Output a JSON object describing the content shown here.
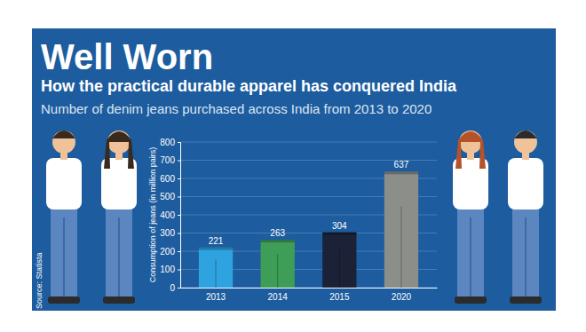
{
  "chart_data": {
    "type": "bar",
    "title": "Well Worn",
    "subtitle": "How the practical durable apparel has conquered India",
    "description": "Number of denim jeans purchased across India from 2013 to 2020",
    "source": "Source: Statista",
    "y_label": "Consumption of jeans (in million pairs)",
    "categories": [
      "2013",
      "2014",
      "2015",
      "2020"
    ],
    "values": [
      221,
      263,
      304,
      637
    ],
    "colors": [
      "#2ea3df",
      "#3e9e57",
      "#1b2238",
      "#8c8f89"
    ],
    "ylim": [
      0,
      800
    ],
    "yticks": [
      0,
      100,
      200,
      300,
      400,
      500,
      600,
      700,
      800
    ],
    "grid": true,
    "data_labels": true
  }
}
